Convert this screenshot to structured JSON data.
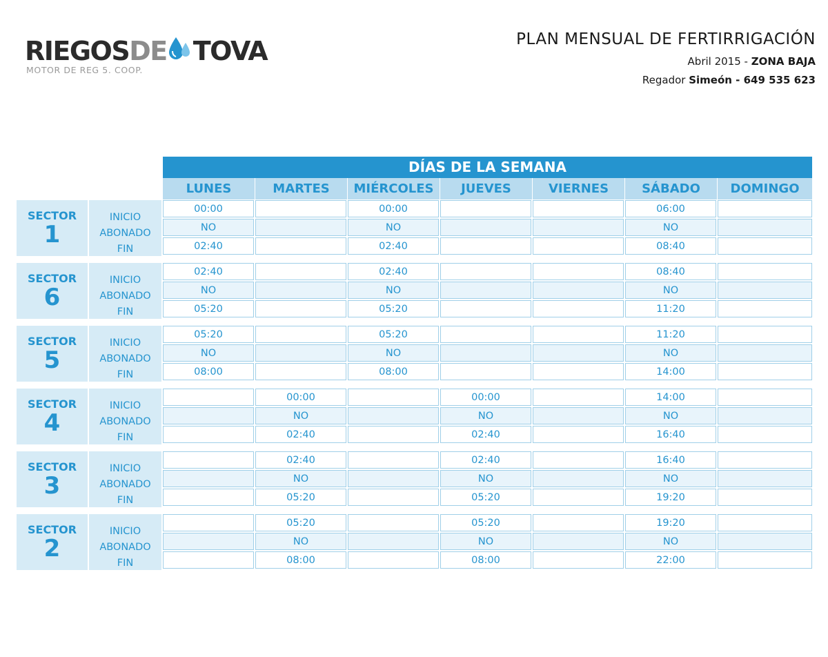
{
  "logo": {
    "word_dark": "RIEGOS",
    "word_gray": "DE",
    "word_end": "TOVA",
    "subtitle": "MOTOR DE REG 5. COOP."
  },
  "header": {
    "title": "PLAN MENSUAL DE FERTIRRIGACIÓN",
    "period": "Abril 2015 -",
    "zone": "ZONA BAJA",
    "regador_label": "Regador",
    "regador_name": "Simeón - 649 535 623"
  },
  "table": {
    "week_title": "DÍAS DE LA SEMANA",
    "days": [
      "LUNES",
      "MARTES",
      "MIÉRCOLES",
      "JUEVES",
      "VIERNES",
      "SÁBADO",
      "DOMINGO"
    ],
    "sector_label": "SECTOR",
    "row_labels": {
      "inicio": "INICIO",
      "abonado": "ABONADO",
      "fin": "FIN"
    },
    "sectors": [
      {
        "number": "1",
        "cells": [
          [
            "00:00",
            "",
            "00:00",
            "",
            "",
            "06:00",
            ""
          ],
          [
            "NO",
            "",
            "NO",
            "",
            "",
            "NO",
            ""
          ],
          [
            "02:40",
            "",
            "02:40",
            "",
            "",
            "08:40",
            ""
          ]
        ]
      },
      {
        "number": "6",
        "cells": [
          [
            "02:40",
            "",
            "02:40",
            "",
            "",
            "08:40",
            ""
          ],
          [
            "NO",
            "",
            "NO",
            "",
            "",
            "NO",
            ""
          ],
          [
            "05:20",
            "",
            "05:20",
            "",
            "",
            "11:20",
            ""
          ]
        ]
      },
      {
        "number": "5",
        "cells": [
          [
            "05:20",
            "",
            "05:20",
            "",
            "",
            "11:20",
            ""
          ],
          [
            "NO",
            "",
            "NO",
            "",
            "",
            "NO",
            ""
          ],
          [
            "08:00",
            "",
            "08:00",
            "",
            "",
            "14:00",
            ""
          ]
        ]
      },
      {
        "number": "4",
        "cells": [
          [
            "",
            "00:00",
            "",
            "00:00",
            "",
            "14:00",
            ""
          ],
          [
            "",
            "NO",
            "",
            "NO",
            "",
            "NO",
            ""
          ],
          [
            "",
            "02:40",
            "",
            "02:40",
            "",
            "16:40",
            ""
          ]
        ]
      },
      {
        "number": "3",
        "cells": [
          [
            "",
            "02:40",
            "",
            "02:40",
            "",
            "16:40",
            ""
          ],
          [
            "",
            "NO",
            "",
            "NO",
            "",
            "NO",
            ""
          ],
          [
            "",
            "05:20",
            "",
            "05:20",
            "",
            "19:20",
            ""
          ]
        ]
      },
      {
        "number": "2",
        "cells": [
          [
            "",
            "05:20",
            "",
            "05:20",
            "",
            "19:20",
            ""
          ],
          [
            "",
            "NO",
            "",
            "NO",
            "",
            "NO",
            ""
          ],
          [
            "",
            "08:00",
            "",
            "08:00",
            "",
            "22:00",
            ""
          ]
        ]
      }
    ]
  },
  "colors": {
    "accent": "#2594cf",
    "day_header": "#b8dbef",
    "sector_bg": "#d6ebf6",
    "cell_alt": "#e8f4fb",
    "logo_dark": "#2b2b2b",
    "logo_gray": "#8c8c8c"
  }
}
